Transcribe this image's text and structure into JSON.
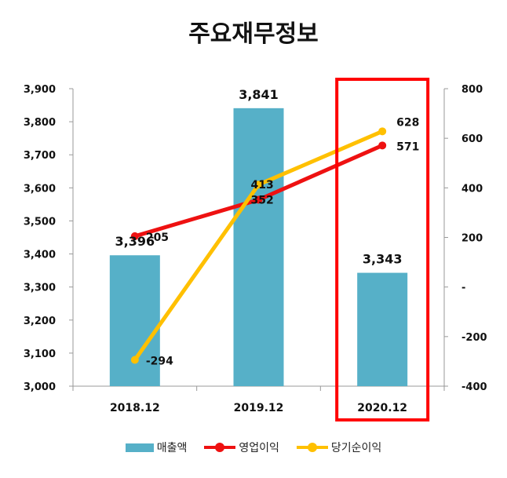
{
  "chart_data": {
    "type": "bar",
    "title": "주요재무정보",
    "categories": [
      "2018.12",
      "2019.12",
      "2020.12"
    ],
    "series": [
      {
        "name": "매출액",
        "type": "bar",
        "axis": "left",
        "values": [
          3396,
          3841,
          3343
        ],
        "labels": [
          "3,396",
          "3,841",
          "3,343"
        ]
      },
      {
        "name": "영업이익",
        "type": "line",
        "axis": "right",
        "values": [
          205,
          352,
          571
        ],
        "labels": [
          "205",
          "352",
          "571"
        ]
      },
      {
        "name": "당기순이익",
        "type": "line",
        "axis": "right",
        "values": [
          -294,
          413,
          628
        ],
        "labels": [
          "-294",
          "413",
          "628"
        ]
      }
    ],
    "left_axis": {
      "ylim": [
        3000,
        3900
      ],
      "ticks": [
        "3,000",
        "3,100",
        "3,200",
        "3,300",
        "3,400",
        "3,500",
        "3,600",
        "3,700",
        "3,800",
        "3,900"
      ]
    },
    "right_axis": {
      "ylim": [
        -400,
        800
      ],
      "ticks": [
        "-400",
        "-200",
        "-",
        "200",
        "400",
        "600",
        "800"
      ]
    },
    "highlight": {
      "category": "2020.12"
    },
    "legend": [
      "매출액",
      "영업이익",
      "당기순이익"
    ],
    "colors": {
      "bar": "#56b0c8",
      "operating": "#ee1111",
      "net": "#ffc000",
      "highlight": "#ff0000",
      "axis": "#999999"
    }
  }
}
